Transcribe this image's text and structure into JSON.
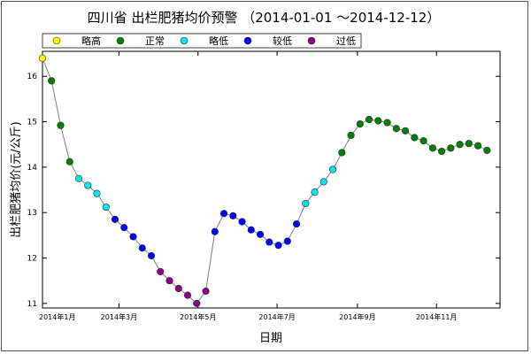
{
  "chart_data": {
    "type": "line",
    "title": "四川省 出栏肥猪均价预警 （2014-01-01 ～2014-12-12）",
    "xlabel": "日期",
    "ylabel": "出栏肥猪均价(元/公斤)",
    "ylim": [
      10.9,
      16.55
    ],
    "yticks": [
      11,
      12,
      13,
      14,
      15,
      16
    ],
    "xlim": [
      "2014-01-01",
      "2014-12-20"
    ],
    "xticks": [
      {
        "date": "2014-01-01",
        "label": "2014年1月"
      },
      {
        "date": "2014-03-01",
        "label": "2014年3月"
      },
      {
        "date": "2014-05-01",
        "label": "2014年5月"
      },
      {
        "date": "2014-07-01",
        "label": "2014年7月"
      },
      {
        "date": "2014-09-01",
        "label": "2014年9月"
      },
      {
        "date": "2014-11-01",
        "label": "2014年11月"
      }
    ],
    "grid": false,
    "legend_position": "top",
    "categories": [
      {
        "key": "slightly_high",
        "name": "略高",
        "color": "#ffff00"
      },
      {
        "key": "normal",
        "name": "正常",
        "color": "#008000"
      },
      {
        "key": "slightly_low",
        "name": "略低",
        "color": "#00e5ee"
      },
      {
        "key": "low",
        "name": "较低",
        "color": "#0000ff"
      },
      {
        "key": "too_low",
        "name": "过低",
        "color": "#8b008b"
      }
    ],
    "line_color": "#808080",
    "points": [
      {
        "date": "2014-01-01",
        "value": 16.4,
        "category": "slightly_high"
      },
      {
        "date": "2014-01-08",
        "value": 15.9,
        "category": "normal"
      },
      {
        "date": "2014-01-15",
        "value": 14.92,
        "category": "normal"
      },
      {
        "date": "2014-01-22",
        "value": 14.12,
        "category": "normal"
      },
      {
        "date": "2014-01-29",
        "value": 13.75,
        "category": "slightly_low"
      },
      {
        "date": "2014-02-05",
        "value": 13.6,
        "category": "slightly_low"
      },
      {
        "date": "2014-02-12",
        "value": 13.42,
        "category": "slightly_low"
      },
      {
        "date": "2014-02-19",
        "value": 13.12,
        "category": "slightly_low"
      },
      {
        "date": "2014-02-26",
        "value": 12.85,
        "category": "low"
      },
      {
        "date": "2014-03-05",
        "value": 12.67,
        "category": "low"
      },
      {
        "date": "2014-03-12",
        "value": 12.47,
        "category": "low"
      },
      {
        "date": "2014-03-19",
        "value": 12.22,
        "category": "low"
      },
      {
        "date": "2014-03-26",
        "value": 12.05,
        "category": "low"
      },
      {
        "date": "2014-04-02",
        "value": 11.7,
        "category": "too_low"
      },
      {
        "date": "2014-04-09",
        "value": 11.5,
        "category": "too_low"
      },
      {
        "date": "2014-04-16",
        "value": 11.33,
        "category": "too_low"
      },
      {
        "date": "2014-04-23",
        "value": 11.18,
        "category": "too_low"
      },
      {
        "date": "2014-04-30",
        "value": 11.0,
        "category": "too_low"
      },
      {
        "date": "2014-05-07",
        "value": 11.27,
        "category": "too_low"
      },
      {
        "date": "2014-05-14",
        "value": 12.58,
        "category": "low"
      },
      {
        "date": "2014-05-21",
        "value": 12.98,
        "category": "low"
      },
      {
        "date": "2014-05-28",
        "value": 12.93,
        "category": "low"
      },
      {
        "date": "2014-06-04",
        "value": 12.8,
        "category": "low"
      },
      {
        "date": "2014-06-11",
        "value": 12.62,
        "category": "low"
      },
      {
        "date": "2014-06-18",
        "value": 12.52,
        "category": "low"
      },
      {
        "date": "2014-06-25",
        "value": 12.35,
        "category": "low"
      },
      {
        "date": "2014-07-02",
        "value": 12.28,
        "category": "low"
      },
      {
        "date": "2014-07-09",
        "value": 12.37,
        "category": "low"
      },
      {
        "date": "2014-07-16",
        "value": 12.75,
        "category": "low"
      },
      {
        "date": "2014-07-23",
        "value": 13.2,
        "category": "slightly_low"
      },
      {
        "date": "2014-07-30",
        "value": 13.45,
        "category": "slightly_low"
      },
      {
        "date": "2014-08-06",
        "value": 13.68,
        "category": "slightly_low"
      },
      {
        "date": "2014-08-13",
        "value": 13.95,
        "category": "slightly_low"
      },
      {
        "date": "2014-08-20",
        "value": 14.32,
        "category": "normal"
      },
      {
        "date": "2014-08-27",
        "value": 14.7,
        "category": "normal"
      },
      {
        "date": "2014-09-03",
        "value": 14.95,
        "category": "normal"
      },
      {
        "date": "2014-09-10",
        "value": 15.05,
        "category": "normal"
      },
      {
        "date": "2014-09-17",
        "value": 15.02,
        "category": "normal"
      },
      {
        "date": "2014-09-24",
        "value": 14.98,
        "category": "normal"
      },
      {
        "date": "2014-10-01",
        "value": 14.85,
        "category": "normal"
      },
      {
        "date": "2014-10-08",
        "value": 14.8,
        "category": "normal"
      },
      {
        "date": "2014-10-15",
        "value": 14.65,
        "category": "normal"
      },
      {
        "date": "2014-10-22",
        "value": 14.58,
        "category": "normal"
      },
      {
        "date": "2014-10-29",
        "value": 14.42,
        "category": "normal"
      },
      {
        "date": "2014-11-05",
        "value": 14.35,
        "category": "normal"
      },
      {
        "date": "2014-11-12",
        "value": 14.42,
        "category": "normal"
      },
      {
        "date": "2014-11-19",
        "value": 14.5,
        "category": "normal"
      },
      {
        "date": "2014-11-26",
        "value": 14.52,
        "category": "normal"
      },
      {
        "date": "2014-12-03",
        "value": 14.47,
        "category": "normal"
      },
      {
        "date": "2014-12-10",
        "value": 14.37,
        "category": "normal"
      }
    ]
  }
}
